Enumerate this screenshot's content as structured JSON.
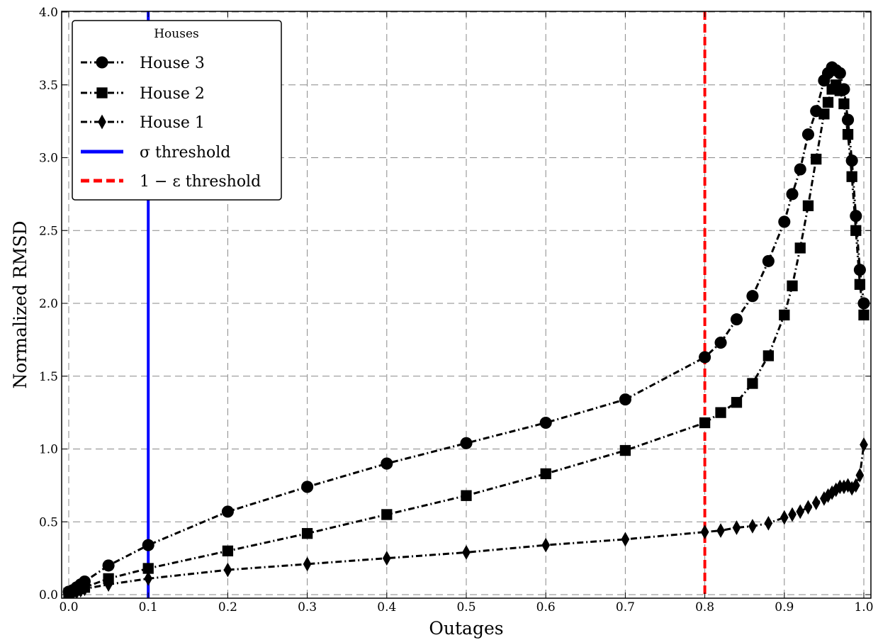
{
  "chart_data": {
    "type": "line",
    "title": "",
    "xlabel": "Outages",
    "ylabel": "Normalized RMSD",
    "xlim": [
      0.0,
      1.0
    ],
    "ylim": [
      0.0,
      4.0
    ],
    "x_ticks": [
      "0.0",
      "0.1",
      "0.2",
      "0.3",
      "0.4",
      "0.5",
      "0.6",
      "0.7",
      "0.8",
      "0.9",
      "1.0"
    ],
    "y_ticks": [
      "0.0",
      "0.5",
      "1.0",
      "1.5",
      "2.0",
      "2.5",
      "3.0",
      "3.5",
      "4.0"
    ],
    "grid": true,
    "legend": {
      "title": "Houses",
      "position": "top-left",
      "entries": [
        "House 3",
        "House 2",
        "House 1",
        "σ threshold",
        "1 − ε threshold"
      ]
    },
    "series": [
      {
        "name": "House 3",
        "marker": "circle",
        "line_style": "dash-dot",
        "color": "#000000",
        "x": [
          0.0,
          0.005,
          0.01,
          0.015,
          0.02,
          0.05,
          0.1,
          0.2,
          0.3,
          0.4,
          0.5,
          0.6,
          0.7,
          0.8,
          0.82,
          0.84,
          0.86,
          0.88,
          0.9,
          0.91,
          0.92,
          0.93,
          0.94,
          0.95,
          0.955,
          0.96,
          0.965,
          0.97,
          0.975,
          0.98,
          0.985,
          0.99,
          0.995,
          1.0
        ],
        "y": [
          0.02,
          0.03,
          0.05,
          0.07,
          0.09,
          0.2,
          0.34,
          0.57,
          0.74,
          0.9,
          1.04,
          1.18,
          1.34,
          1.63,
          1.73,
          1.89,
          2.05,
          2.29,
          2.56,
          2.75,
          2.92,
          3.16,
          3.32,
          3.53,
          3.58,
          3.62,
          3.6,
          3.58,
          3.47,
          3.26,
          2.98,
          2.6,
          2.23,
          2.0
        ]
      },
      {
        "name": "House 2",
        "marker": "square",
        "line_style": "dash-dot",
        "color": "#000000",
        "x": [
          0.0,
          0.005,
          0.01,
          0.015,
          0.02,
          0.05,
          0.1,
          0.2,
          0.3,
          0.4,
          0.5,
          0.6,
          0.7,
          0.8,
          0.82,
          0.84,
          0.86,
          0.88,
          0.9,
          0.91,
          0.92,
          0.93,
          0.94,
          0.95,
          0.955,
          0.96,
          0.965,
          0.97,
          0.975,
          0.98,
          0.985,
          0.99,
          0.995,
          1.0
        ],
        "y": [
          0.01,
          0.02,
          0.03,
          0.04,
          0.05,
          0.11,
          0.18,
          0.3,
          0.42,
          0.55,
          0.68,
          0.83,
          0.99,
          1.18,
          1.25,
          1.32,
          1.45,
          1.64,
          1.92,
          2.12,
          2.38,
          2.67,
          2.99,
          3.3,
          3.38,
          3.47,
          3.5,
          3.46,
          3.37,
          3.16,
          2.87,
          2.5,
          2.13,
          1.92
        ]
      },
      {
        "name": "House 1",
        "marker": "thin_diamond",
        "line_style": "dash-dot",
        "color": "#000000",
        "x": [
          0.0,
          0.005,
          0.01,
          0.015,
          0.02,
          0.05,
          0.1,
          0.2,
          0.3,
          0.4,
          0.5,
          0.6,
          0.7,
          0.8,
          0.82,
          0.84,
          0.86,
          0.88,
          0.9,
          0.91,
          0.92,
          0.93,
          0.94,
          0.95,
          0.955,
          0.96,
          0.965,
          0.97,
          0.975,
          0.98,
          0.985,
          0.99,
          0.995,
          1.0
        ],
        "y": [
          0.0,
          0.01,
          0.02,
          0.03,
          0.04,
          0.07,
          0.11,
          0.17,
          0.21,
          0.25,
          0.29,
          0.34,
          0.38,
          0.43,
          0.44,
          0.46,
          0.47,
          0.49,
          0.53,
          0.55,
          0.57,
          0.6,
          0.63,
          0.66,
          0.68,
          0.7,
          0.72,
          0.74,
          0.74,
          0.75,
          0.73,
          0.75,
          0.82,
          1.03
        ]
      }
    ],
    "thresholds": [
      {
        "name": "σ threshold",
        "x": 0.1,
        "color": "#0000ff",
        "style": "solid"
      },
      {
        "name": "1 − ε threshold",
        "x": 0.8,
        "color": "#ff0000",
        "style": "dashed"
      }
    ]
  }
}
